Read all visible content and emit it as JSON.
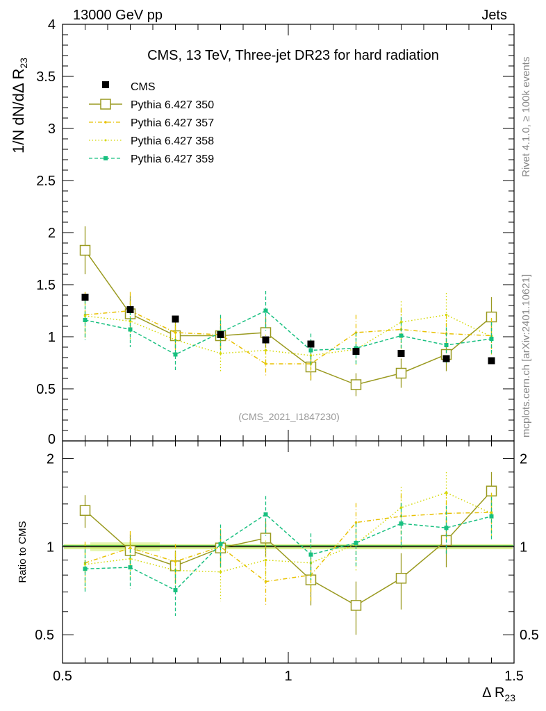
{
  "header": {
    "left": "13000 GeV pp",
    "right": "Jets"
  },
  "side": {
    "right_top": "Rivet 4.1.0, ≥ 100k events",
    "right_bottom": "mcplots.cern.ch [arXiv:2401.10621]"
  },
  "chart_data": {
    "type": "scatter",
    "title": "CMS, 13 TeV, Three-jet DR23 for hard radiation",
    "watermark": "(CMS_2021_I1847230)",
    "ylabel_main": "1/N dN/dΔ R23",
    "ylabel_ratio": "Ratio to CMS",
    "xlabel": "Δ R",
    "xlabel_sub": "23",
    "xlim": [
      0.5,
      1.5
    ],
    "ylim_main": [
      0,
      4
    ],
    "ylim_ratio": [
      0.4,
      2.3
    ],
    "xticks": [
      0.5,
      1,
      1.5
    ],
    "xtick_labels": [
      "0.5",
      "1",
      "1.5"
    ],
    "yticks_main": [
      0,
      0.5,
      1,
      1.5,
      2,
      2.5,
      3,
      3.5,
      4
    ],
    "ytick_labels_main": [
      "0",
      "0.5",
      "1",
      "1.5",
      "2",
      "2.5",
      "3",
      "3.5",
      "4"
    ],
    "yticks_ratio": [
      0.5,
      1,
      2
    ],
    "ytick_labels_ratio": [
      "0.5",
      "1",
      "2"
    ],
    "x": [
      0.55,
      0.65,
      0.75,
      0.85,
      0.95,
      1.05,
      1.15,
      1.25,
      1.35,
      1.45
    ],
    "series": [
      {
        "name": "CMS",
        "color": "#000000",
        "style": "data",
        "values": [
          1.38,
          1.26,
          1.17,
          1.02,
          0.97,
          0.93,
          0.86,
          0.84,
          0.79,
          0.77
        ],
        "errors": [
          0.03,
          0.03,
          0.02,
          0.02,
          0.02,
          0.02,
          0.02,
          0.02,
          0.02,
          0.02
        ]
      },
      {
        "name": "Pythia 6.427 350",
        "color": "#9a9a20",
        "style": "solid-box",
        "values": [
          1.83,
          1.22,
          1.01,
          1.01,
          1.04,
          0.71,
          0.54,
          0.65,
          0.83,
          1.19
        ],
        "errors": [
          0.23,
          0.17,
          0.13,
          0.12,
          0.15,
          0.13,
          0.11,
          0.14,
          0.16,
          0.19
        ]
      },
      {
        "name": "Pythia 6.427 357",
        "color": "#e8c000",
        "style": "dashdot",
        "values": [
          1.21,
          1.25,
          1.04,
          1.02,
          0.74,
          0.74,
          1.04,
          1.07,
          1.03,
          1.01
        ],
        "errors": [
          0.22,
          0.18,
          0.15,
          0.16,
          0.13,
          0.15,
          0.17,
          0.2,
          0.19,
          0.17
        ]
      },
      {
        "name": "Pythia 6.427 358",
        "color": "#d4d800",
        "style": "dotted",
        "values": [
          1.2,
          1.15,
          0.97,
          0.84,
          0.87,
          0.82,
          0.88,
          1.14,
          1.21,
          1.0
        ],
        "errors": [
          0.2,
          0.17,
          0.15,
          0.17,
          0.15,
          0.15,
          0.16,
          0.2,
          0.21,
          0.17
        ]
      },
      {
        "name": "Pythia 6.427 359",
        "color": "#18c080",
        "style": "dashed-square",
        "values": [
          1.16,
          1.07,
          0.83,
          1.04,
          1.25,
          0.87,
          0.89,
          1.01,
          0.92,
          0.98
        ],
        "errors": [
          0.19,
          0.17,
          0.15,
          0.17,
          0.19,
          0.16,
          0.15,
          0.18,
          0.17,
          0.16
        ]
      }
    ],
    "ratio_series": [
      {
        "name": "Pythia 6.427 350",
        "values": [
          1.33,
          0.97,
          0.86,
          0.99,
          1.07,
          0.77,
          0.63,
          0.78,
          1.05,
          1.55
        ],
        "errors": [
          0.17,
          0.13,
          0.11,
          0.12,
          0.15,
          0.14,
          0.13,
          0.17,
          0.2,
          0.25
        ]
      },
      {
        "name": "Pythia 6.427 357",
        "values": [
          0.88,
          0.99,
          0.89,
          1.0,
          0.76,
          0.8,
          1.21,
          1.27,
          1.3,
          1.31
        ],
        "errors": [
          0.16,
          0.14,
          0.13,
          0.15,
          0.13,
          0.16,
          0.2,
          0.24,
          0.24,
          0.22
        ]
      },
      {
        "name": "Pythia 6.427 358",
        "values": [
          0.87,
          0.91,
          0.83,
          0.82,
          0.9,
          0.88,
          1.02,
          1.36,
          1.53,
          1.3
        ],
        "errors": [
          0.15,
          0.13,
          0.13,
          0.17,
          0.15,
          0.16,
          0.19,
          0.24,
          0.27,
          0.22
        ]
      },
      {
        "name": "Pythia 6.427 359",
        "values": [
          0.84,
          0.85,
          0.71,
          1.02,
          1.29,
          0.94,
          1.03,
          1.2,
          1.16,
          1.27
        ],
        "errors": [
          0.14,
          0.13,
          0.13,
          0.17,
          0.2,
          0.17,
          0.17,
          0.21,
          0.22,
          0.21
        ]
      }
    ],
    "band": {
      "color": "#ccee66",
      "label": "CMS uncertainty"
    }
  }
}
